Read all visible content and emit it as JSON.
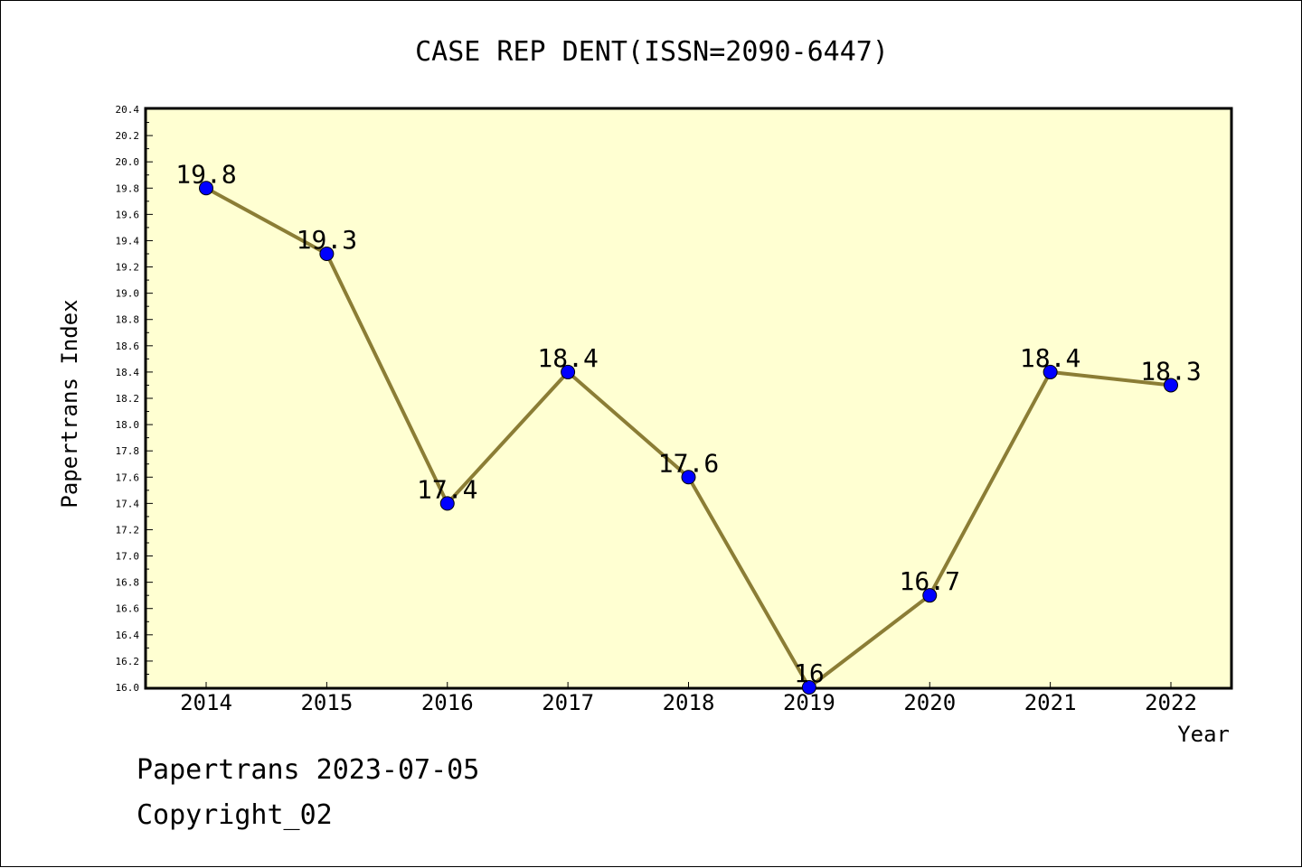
{
  "chart_data": {
    "type": "line",
    "title": "CASE REP DENT(ISSN=2090-6447)",
    "xlabel": "Year",
    "ylabel": "Papertrans Index",
    "categories": [
      "2014",
      "2015",
      "2016",
      "2017",
      "2018",
      "2019",
      "2020",
      "2021",
      "2022"
    ],
    "series": [
      {
        "values": [
          19.8,
          19.3,
          17.4,
          18.4,
          17.6,
          16.0,
          16.7,
          18.4,
          18.3
        ],
        "data_labels": [
          "19.8",
          "19.3",
          "17.4",
          "18.4",
          "17.6",
          "16",
          "16.7",
          "18.4",
          "18.3"
        ]
      }
    ],
    "ylim": [
      16.0,
      20.4
    ],
    "y_ticks": [
      "16.0",
      "16.2",
      "16.4",
      "16.6",
      "16.8",
      "17.0",
      "17.2",
      "17.4",
      "17.6",
      "17.8",
      "18.0",
      "18.2",
      "18.4",
      "18.6",
      "18.8",
      "19.0",
      "19.2",
      "19.4",
      "19.6",
      "19.8",
      "20.0",
      "20.2",
      "20.4"
    ],
    "grid": false,
    "legend": "none",
    "colors": {
      "plot_background": "#ffffd2",
      "line": "#8b7d35",
      "marker": "#0000ff",
      "axis": "#000000"
    }
  },
  "footer": {
    "date_line": "Papertrans 2023-07-05",
    "copyright_line": "Copyright_02"
  }
}
